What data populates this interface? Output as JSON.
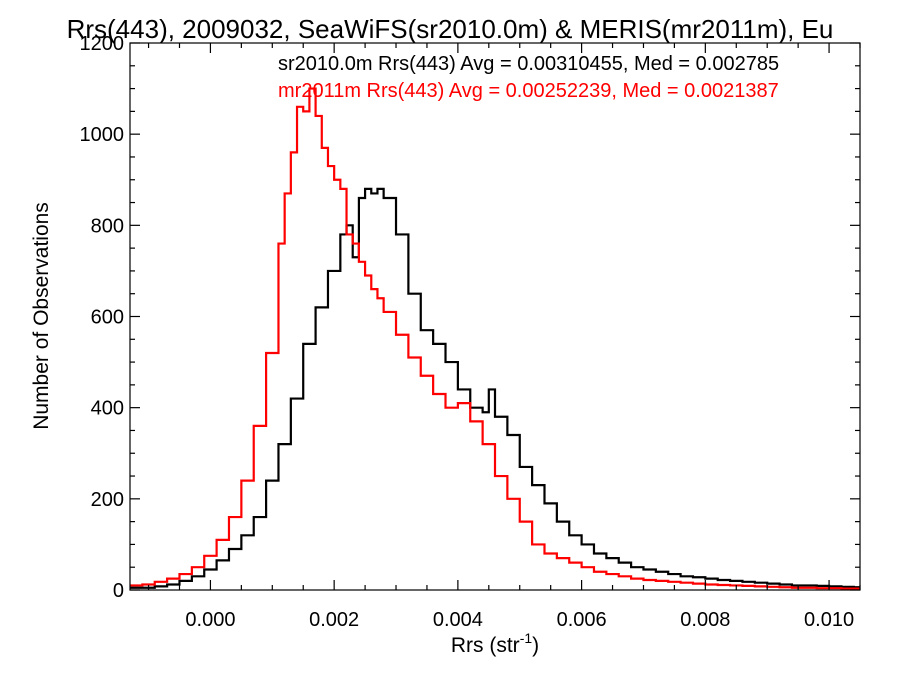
{
  "chart_data": {
    "type": "line",
    "style": "step-histogram",
    "title": "Rrs(443), 2009032, SeaWiFS(sr2010.0m) & MERIS(mr2011m), Eu",
    "xlabel": "Rrs (str",
    "xlabel_superscript": "-1",
    "xlabel_suffix": ")",
    "ylabel": "Number of Observations",
    "xlim": [
      -0.0013,
      0.0105
    ],
    "ylim": [
      0,
      1200
    ],
    "x_ticks": [
      0.0,
      0.002,
      0.004,
      0.006,
      0.008,
      0.01
    ],
    "x_tick_labels": [
      "0.000",
      "0.002",
      "0.004",
      "0.006",
      "0.008",
      "0.010"
    ],
    "y_ticks": [
      0,
      200,
      400,
      600,
      800,
      1000,
      1200
    ],
    "y_tick_labels": [
      "0",
      "200",
      "400",
      "600",
      "800",
      "1000",
      "1200"
    ],
    "grid": false,
    "legend_placement": "top-right",
    "annotations": [
      {
        "text": "sr2010.0m Rrs(443) Avg = 0.00310455, Med = 0.002785",
        "color": "#000000"
      },
      {
        "text": "mr2011m Rrs(443) Avg = 0.00252239, Med = 0.0021387",
        "color": "#ff0000"
      }
    ],
    "series": [
      {
        "color": "#000000",
        "x": [
          -0.0013,
          -0.0011,
          -0.0009,
          -0.0007,
          -0.0005,
          -0.0003,
          -0.0001,
          0.0001,
          0.0003,
          0.0005,
          0.0007,
          0.0009,
          0.0011,
          0.0013,
          0.0015,
          0.0017,
          0.0019,
          0.0021,
          0.0022,
          0.0023,
          0.0024,
          0.0025,
          0.0026,
          0.0027,
          0.0028,
          0.003,
          0.0032,
          0.0034,
          0.0036,
          0.0038,
          0.004,
          0.0042,
          0.0044,
          0.0045,
          0.0046,
          0.0048,
          0.005,
          0.0052,
          0.0054,
          0.0056,
          0.0058,
          0.006,
          0.0062,
          0.0064,
          0.0066,
          0.0068,
          0.007,
          0.0072,
          0.0074,
          0.0076,
          0.0078,
          0.008,
          0.0082,
          0.0084,
          0.0086,
          0.0088,
          0.009,
          0.0092,
          0.0094,
          0.0096,
          0.0098,
          0.01,
          0.0102,
          0.0104
        ],
        "values": [
          5,
          5,
          8,
          12,
          20,
          30,
          45,
          65,
          90,
          120,
          160,
          240,
          320,
          420,
          540,
          620,
          700,
          780,
          800,
          730,
          860,
          880,
          870,
          880,
          860,
          780,
          650,
          570,
          540,
          500,
          440,
          400,
          390,
          440,
          380,
          340,
          270,
          230,
          190,
          150,
          120,
          100,
          80,
          70,
          60,
          50,
          45,
          40,
          35,
          30,
          28,
          25,
          22,
          20,
          18,
          16,
          14,
          12,
          10,
          10,
          9,
          8,
          7,
          6
        ]
      },
      {
        "color": "#ff0000",
        "x": [
          -0.0013,
          -0.0011,
          -0.0009,
          -0.0007,
          -0.0005,
          -0.0003,
          -0.0001,
          0.0001,
          0.0003,
          0.0005,
          0.0007,
          0.0009,
          0.0011,
          0.0012,
          0.0013,
          0.0014,
          0.0015,
          0.0016,
          0.0017,
          0.0018,
          0.0019,
          0.002,
          0.0021,
          0.0022,
          0.0023,
          0.0024,
          0.0025,
          0.0026,
          0.0027,
          0.0028,
          0.003,
          0.0032,
          0.0034,
          0.0036,
          0.0038,
          0.004,
          0.0042,
          0.0044,
          0.0046,
          0.0048,
          0.005,
          0.0052,
          0.0054,
          0.0056,
          0.0058,
          0.006,
          0.0062,
          0.0064,
          0.0066,
          0.0068,
          0.007,
          0.0072,
          0.0074,
          0.0076,
          0.0078,
          0.008,
          0.0082,
          0.0084,
          0.0086,
          0.0088,
          0.009,
          0.0092,
          0.0094,
          0.0096,
          0.0098,
          0.01,
          0.0102,
          0.0104
        ],
        "values": [
          10,
          12,
          18,
          25,
          35,
          50,
          75,
          110,
          160,
          240,
          360,
          520,
          760,
          870,
          960,
          1060,
          1050,
          1100,
          1040,
          970,
          930,
          900,
          880,
          780,
          760,
          720,
          690,
          660,
          640,
          610,
          560,
          510,
          470,
          430,
          400,
          410,
          370,
          320,
          250,
          200,
          150,
          100,
          80,
          70,
          60,
          50,
          40,
          35,
          30,
          25,
          22,
          20,
          18,
          16,
          14,
          12,
          11,
          10,
          9,
          8,
          7,
          6,
          5,
          5,
          4,
          4,
          3,
          3
        ]
      }
    ]
  }
}
